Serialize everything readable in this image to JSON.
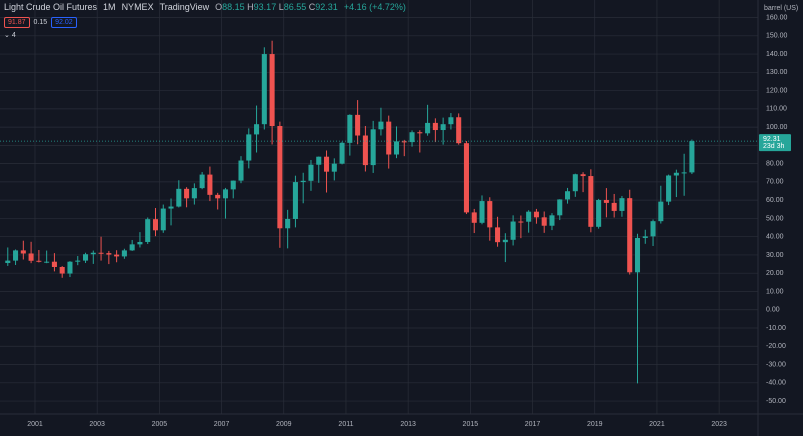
{
  "header": {
    "symbol": "Light Crude Oil Futures",
    "interval": "1M",
    "exchange": "NYMEX",
    "source": "TradingView",
    "ohlc": [
      {
        "label": "O",
        "text": "88.15"
      },
      {
        "label": "H",
        "text": "93.17"
      },
      {
        "label": "L",
        "text": "86.55"
      },
      {
        "label": "C",
        "text": "92.31"
      }
    ],
    "change": "+4.16 (+4.72%)",
    "bid": "91.87",
    "spread": "0.15",
    "ask": "92.02",
    "indicators": "4"
  },
  "chart_data": {
    "type": "candlestick",
    "y_axis_label": "barrel (US)",
    "x": [
      2000.125,
      2000.375,
      2000.625,
      2000.875,
      2001.125,
      2001.375,
      2001.625,
      2001.875,
      2002.125,
      2002.375,
      2002.625,
      2002.875,
      2003.125,
      2003.375,
      2003.625,
      2003.875,
      2004.125,
      2004.375,
      2004.625,
      2004.875,
      2005.125,
      2005.375,
      2005.625,
      2005.875,
      2006.125,
      2006.375,
      2006.625,
      2006.875,
      2007.125,
      2007.375,
      2007.625,
      2007.875,
      2008.125,
      2008.375,
      2008.625,
      2008.875,
      2009.125,
      2009.375,
      2009.625,
      2009.875,
      2010.125,
      2010.375,
      2010.625,
      2010.875,
      2011.125,
      2011.375,
      2011.625,
      2011.875,
      2012.125,
      2012.375,
      2012.625,
      2012.875,
      2013.125,
      2013.375,
      2013.625,
      2013.875,
      2014.125,
      2014.375,
      2014.625,
      2014.875,
      2015.125,
      2015.375,
      2015.625,
      2015.875,
      2016.125,
      2016.375,
      2016.625,
      2016.875,
      2017.125,
      2017.375,
      2017.625,
      2017.875,
      2018.125,
      2018.375,
      2018.625,
      2018.875,
      2019.125,
      2019.375,
      2019.625,
      2019.875,
      2020.125,
      2020.375,
      2020.625,
      2020.875,
      2021.125,
      2021.375,
      2021.625,
      2021.875,
      2022.125
    ],
    "open": [
      25.6,
      26.9,
      32.5,
      30.8,
      26.8,
      26.3,
      26.3,
      23.4,
      19.8,
      26.3,
      26.9,
      30.4,
      31.2,
      31.0,
      30.2,
      29.2,
      32.5,
      35.8,
      37.1,
      49.6,
      43.5,
      55.4,
      56.5,
      66.2,
      61.0,
      66.6,
      74.0,
      62.9,
      61.0,
      65.9,
      70.7,
      81.7,
      96.0,
      101.6,
      140.0,
      100.6,
      44.6,
      49.7,
      69.9,
      70.6,
      79.4,
      83.8,
      75.6,
      80.0,
      91.4,
      106.7,
      95.4,
      79.2,
      98.8,
      103.0,
      85.0,
      92.2,
      91.8,
      97.2,
      96.6,
      102.3,
      98.4,
      101.6,
      105.4,
      91.2,
      53.3,
      47.6,
      59.5,
      45.1,
      37.0,
      38.3,
      48.3,
      48.2,
      53.7,
      50.6,
      46.0,
      51.7,
      60.4,
      64.9,
      74.2,
      73.2,
      45.4,
      60.1,
      58.5,
      54.1,
      61.1,
      20.5,
      39.3,
      40.2,
      48.5,
      59.2,
      73.5,
      75.0,
      75.2
    ],
    "high": [
      34.1,
      33.0,
      37.8,
      37.2,
      32.7,
      32.4,
      31.0,
      23.9,
      26.6,
      29.4,
      31.2,
      32.4,
      39.99,
      32.2,
      32.6,
      33.4,
      38.2,
      42.5,
      50.5,
      55.7,
      57.6,
      60.9,
      70.9,
      67.1,
      69.2,
      75.4,
      78.4,
      64.0,
      66.7,
      70.8,
      84.1,
      99.3,
      111.8,
      143.7,
      147.3,
      103.0,
      54.7,
      73.4,
      75.0,
      82.0,
      83.9,
      87.2,
      82.9,
      92.0,
      107.0,
      114.8,
      100.6,
      103.4,
      110.6,
      106.3,
      100.4,
      93.0,
      98.2,
      98.3,
      112.2,
      104.8,
      105.2,
      107.7,
      107.5,
      92.4,
      55.2,
      62.6,
      61.6,
      50.9,
      41.9,
      51.7,
      51.6,
      54.5,
      55.2,
      53.8,
      52.9,
      60.5,
      66.7,
      74.5,
      75.3,
      76.9,
      60.7,
      66.6,
      63.4,
      62.3,
      65.7,
      41.6,
      43.8,
      49.4,
      67.9,
      74.0,
      76.7,
      85.4,
      93.17
    ],
    "low": [
      24.0,
      24.5,
      27.5,
      25.5,
      25.9,
      25.5,
      21.0,
      17.5,
      17.9,
      24.4,
      25.6,
      25.1,
      26.9,
      25.0,
      26.0,
      27.9,
      32.2,
      34.1,
      36.0,
      40.3,
      42.1,
      46.2,
      56.0,
      56.1,
      57.6,
      66.0,
      59.5,
      54.9,
      49.9,
      61.0,
      69.3,
      77.4,
      86.1,
      98.7,
      90.5,
      33.9,
      33.6,
      45.1,
      58.3,
      65.1,
      69.5,
      64.2,
      70.8,
      79.6,
      84.4,
      90.6,
      75.7,
      74.9,
      95.4,
      77.3,
      83.0,
      84.1,
      89.3,
      86.1,
      95.3,
      91.8,
      90.4,
      98.7,
      90.4,
      52.4,
      42.0,
      46.8,
      37.8,
      34.5,
      26.1,
      35.2,
      39.2,
      42.2,
      47.1,
      42.1,
      43.6,
      49.1,
      58.1,
      61.8,
      64.4,
      42.4,
      44.4,
      50.6,
      50.5,
      50.9,
      19.3,
      -40.3,
      36.1,
      34.9,
      47.2,
      57.3,
      61.7,
      62.4,
      74.3
    ],
    "close": [
      26.9,
      32.5,
      30.8,
      26.8,
      26.3,
      26.3,
      23.4,
      19.8,
      26.3,
      26.9,
      30.4,
      31.2,
      31.0,
      30.2,
      29.2,
      32.5,
      35.8,
      37.1,
      49.6,
      43.5,
      55.4,
      56.5,
      66.2,
      61.0,
      66.6,
      74.0,
      62.9,
      61.0,
      65.9,
      70.7,
      81.7,
      96.0,
      101.6,
      140.0,
      100.6,
      44.6,
      49.7,
      69.9,
      70.6,
      79.4,
      83.8,
      75.6,
      80.0,
      91.4,
      106.7,
      95.4,
      79.2,
      98.8,
      103.0,
      85.0,
      92.2,
      91.8,
      97.2,
      96.6,
      102.3,
      98.4,
      101.6,
      105.4,
      91.2,
      53.3,
      47.6,
      59.5,
      45.1,
      37.0,
      38.3,
      48.3,
      48.2,
      53.7,
      50.6,
      46.0,
      51.7,
      60.4,
      64.9,
      74.2,
      73.2,
      45.4,
      60.1,
      58.5,
      54.1,
      61.1,
      20.5,
      39.3,
      40.2,
      48.5,
      59.2,
      73.5,
      75.0,
      75.2,
      92.31
    ],
    "up_color": "#26a69a",
    "down_color": "#ef5350",
    "last_price": {
      "value": 92.31,
      "label": "92.31"
    },
    "countdown": "23d 3h",
    "xlim": [
      1999.875,
      2024.25
    ],
    "xticks": [
      2001,
      2003,
      2005,
      2007,
      2009,
      2011,
      2013,
      2015,
      2017,
      2019,
      2021,
      2023
    ],
    "ylim": [
      -54.9,
      169.6
    ],
    "yticks": [
      {
        "value": -50,
        "label": "-50.00"
      },
      {
        "value": -40,
        "label": "-40.00"
      },
      {
        "value": -30,
        "label": "-30.00"
      },
      {
        "value": -20,
        "label": "-20.00"
      },
      {
        "value": -10,
        "label": "-10.00"
      },
      {
        "value": 0,
        "label": "0.00"
      },
      {
        "value": 10,
        "label": "10.00"
      },
      {
        "value": 20,
        "label": "20.00"
      },
      {
        "value": 30,
        "label": "30.00"
      },
      {
        "value": 40,
        "label": "40.00"
      },
      {
        "value": 50,
        "label": "50.00"
      },
      {
        "value": 60,
        "label": "60.00"
      },
      {
        "value": 70,
        "label": "70.00"
      },
      {
        "value": 80,
        "label": "80.00"
      },
      {
        "value": 90,
        "label": "90.00"
      },
      {
        "value": 100,
        "label": "100.00"
      },
      {
        "value": 110,
        "label": "110.00"
      },
      {
        "value": 120,
        "label": "120.00"
      },
      {
        "value": 130,
        "label": "130.00"
      },
      {
        "value": 140,
        "label": "140.00"
      },
      {
        "value": 150,
        "label": "150.00"
      },
      {
        "value": 160,
        "label": "160.00"
      }
    ],
    "grid": true
  }
}
